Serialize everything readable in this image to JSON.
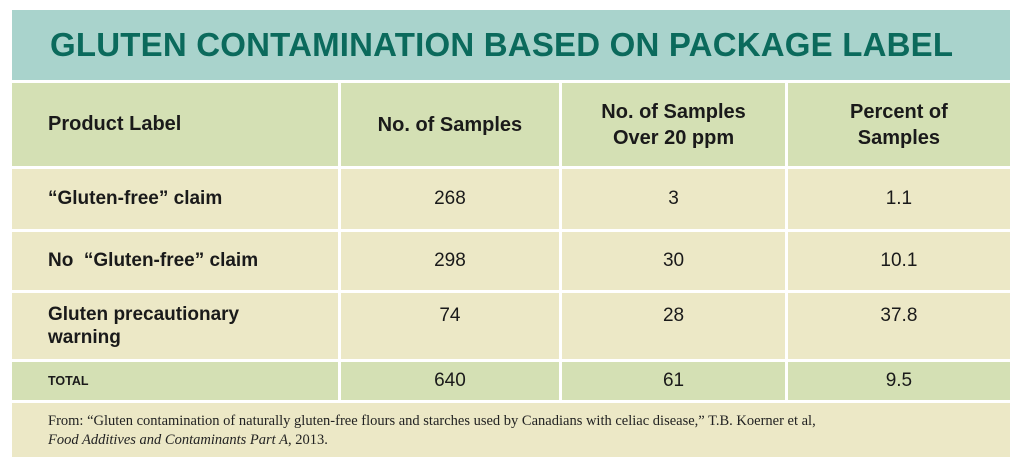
{
  "title": "GLUTEN CONTAMINATION BASED ON PACKAGE LABEL",
  "colors": {
    "title_band": "#a9d3cc",
    "title_text": "#0b6a5c",
    "header_row": "#d4e0b4",
    "data_row": "#ece8c6"
  },
  "chart_data": {
    "type": "table",
    "title": "GLUTEN CONTAMINATION BASED ON PACKAGE LABEL",
    "columns": [
      "Product Label",
      "No. of Samples",
      "No. of Samples Over 20 ppm",
      "Percent of Samples"
    ],
    "rows": [
      [
        "“Gluten-free” claim",
        "268",
        "3",
        "1.1"
      ],
      [
        "No  “Gluten-free” claim",
        "298",
        "30",
        "10.1"
      ],
      [
        "Gluten precautionary warning",
        "74",
        "28",
        "37.8"
      ]
    ],
    "total": [
      "TOTAL",
      "640",
      "61",
      "9.5"
    ]
  },
  "footer": {
    "line1": "From: “Gluten contamination of naturally gluten-free flours and starches used by Canadians with celiac disease,” T.B. Koerner et al,",
    "journal": "Food Additives and Contaminants Part A",
    "year": ", 2013."
  }
}
